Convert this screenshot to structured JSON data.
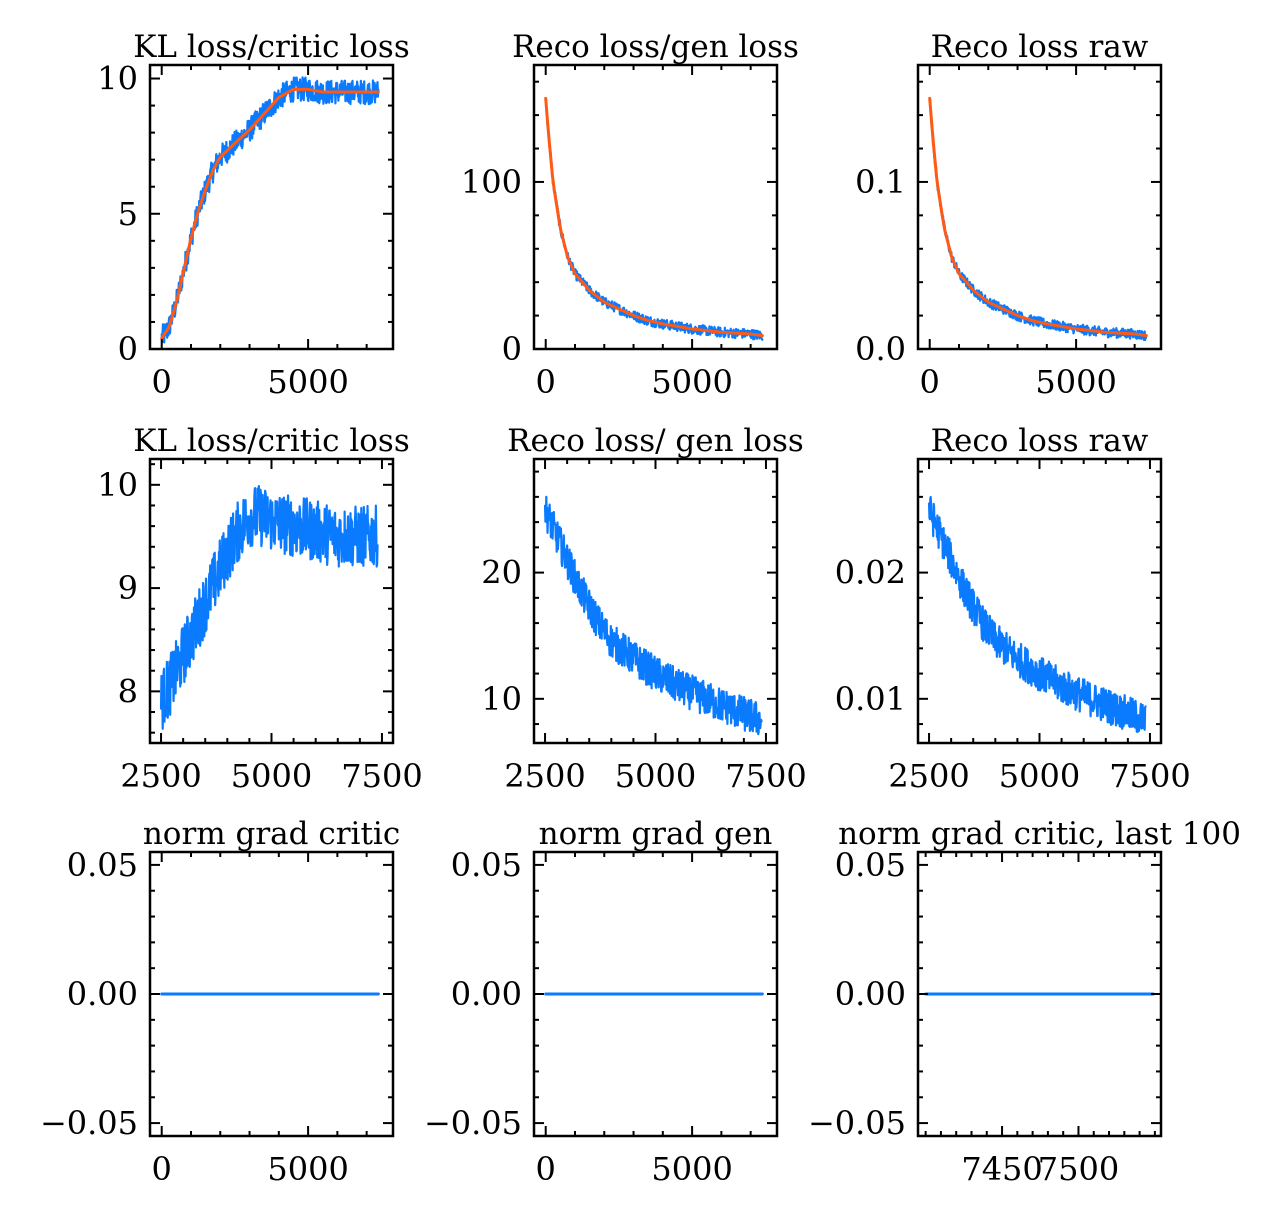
{
  "colors": {
    "raw": "#0a7bff",
    "smoothed": "#ff5a14",
    "axis": "#000000"
  },
  "chart_data": [
    {
      "type": "line",
      "title": "KL loss/critic loss",
      "xlim": [
        -400,
        7900
      ],
      "ylim": [
        0,
        10.5
      ],
      "xticks": [
        0,
        5000
      ],
      "xtick_labels": [
        "0",
        "5000"
      ],
      "xminor": 1000,
      "yticks": [
        0,
        5,
        10
      ],
      "ytick_labels": [
        "0",
        "5",
        "10"
      ],
      "yminor": 1,
      "series": [
        {
          "style": "raw",
          "band": 0.45,
          "x": [
            0,
            250,
            500,
            750,
            1000,
            1250,
            1500,
            1750,
            2000,
            2500,
            3000,
            3500,
            4000,
            4500,
            5000,
            5500,
            6000,
            6500,
            7000,
            7400
          ],
          "y": [
            0.4,
            0.8,
            1.7,
            2.9,
            4.1,
            5.1,
            5.9,
            6.6,
            7.1,
            7.6,
            8.1,
            8.7,
            9.3,
            9.6,
            9.6,
            9.5,
            9.5,
            9.5,
            9.5,
            9.5
          ]
        },
        {
          "style": "smoothed",
          "band": 0,
          "x": [
            0,
            250,
            500,
            750,
            1000,
            1250,
            1500,
            1750,
            2000,
            2500,
            3000,
            3500,
            4000,
            4500,
            5000,
            5500,
            6000,
            6500,
            7000,
            7400
          ],
          "y": [
            0.4,
            0.8,
            1.7,
            2.9,
            4.1,
            5.1,
            5.9,
            6.6,
            7.1,
            7.6,
            8.1,
            8.7,
            9.3,
            9.6,
            9.6,
            9.5,
            9.5,
            9.5,
            9.5,
            9.5
          ]
        }
      ]
    },
    {
      "type": "line",
      "title": "Reco loss/gen loss",
      "xlim": [
        -400,
        7900
      ],
      "ylim": [
        0,
        170
      ],
      "xticks": [
        0,
        5000
      ],
      "xtick_labels": [
        "0",
        "5000"
      ],
      "xminor": 1000,
      "yticks": [
        0,
        100
      ],
      "ytick_labels": [
        "0",
        "100"
      ],
      "yminor": 20,
      "series": [
        {
          "style": "raw",
          "band": 3,
          "x": [
            0,
            100,
            250,
            500,
            750,
            1000,
            1500,
            2000,
            2500,
            3000,
            3500,
            4000,
            5000,
            6000,
            7000,
            7400
          ],
          "y": [
            150,
            128,
            100,
            72,
            55,
            45,
            35,
            28,
            24,
            20,
            17,
            15,
            12,
            10,
            9,
            8
          ]
        },
        {
          "style": "smoothed",
          "band": 0,
          "x": [
            0,
            100,
            250,
            500,
            750,
            1000,
            1500,
            2000,
            2500,
            3000,
            3500,
            4000,
            5000,
            6000,
            7000,
            7400
          ],
          "y": [
            150,
            128,
            100,
            72,
            55,
            45,
            35,
            28,
            24,
            20,
            17,
            15,
            12,
            10,
            9,
            8
          ]
        }
      ]
    },
    {
      "type": "line",
      "title": "Reco loss raw",
      "xlim": [
        -400,
        7900
      ],
      "ylim": [
        0,
        0.17
      ],
      "xticks": [
        0,
        5000
      ],
      "xtick_labels": [
        "0",
        "5000"
      ],
      "xminor": 1000,
      "yticks": [
        0,
        0.1
      ],
      "ytick_labels": [
        "0.0",
        "0.1"
      ],
      "yminor": 0.02,
      "series": [
        {
          "style": "raw",
          "band": 0.003,
          "x": [
            0,
            100,
            250,
            500,
            750,
            1000,
            1500,
            2000,
            2500,
            3000,
            3500,
            4000,
            5000,
            6000,
            7000,
            7400
          ],
          "y": [
            0.15,
            0.128,
            0.1,
            0.072,
            0.055,
            0.045,
            0.035,
            0.028,
            0.024,
            0.02,
            0.017,
            0.015,
            0.012,
            0.01,
            0.009,
            0.008
          ]
        },
        {
          "style": "smoothed",
          "band": 0,
          "x": [
            0,
            100,
            250,
            500,
            750,
            1000,
            1500,
            2000,
            2500,
            3000,
            3500,
            4000,
            5000,
            6000,
            7000,
            7400
          ],
          "y": [
            0.15,
            0.128,
            0.1,
            0.072,
            0.055,
            0.045,
            0.035,
            0.028,
            0.024,
            0.02,
            0.017,
            0.015,
            0.012,
            0.01,
            0.009,
            0.008
          ]
        }
      ]
    },
    {
      "type": "line",
      "title": "KL loss/critic loss",
      "xlim": [
        2250,
        7750
      ],
      "ylim": [
        7.5,
        10.25
      ],
      "xticks": [
        2500,
        5000,
        7500
      ],
      "xtick_labels": [
        "2500",
        "5000",
        "7500"
      ],
      "xminor": 500,
      "yticks": [
        8,
        9,
        10
      ],
      "ytick_labels": [
        "8",
        "9",
        "10"
      ],
      "yminor": 0.2,
      "series": [
        {
          "style": "raw",
          "band": 0.3,
          "x": [
            2500,
            2750,
            3000,
            3250,
            3500,
            3750,
            4000,
            4250,
            4500,
            4750,
            5000,
            5500,
            6000,
            6500,
            7000,
            7400
          ],
          "y": [
            7.9,
            8.1,
            8.35,
            8.6,
            8.85,
            9.1,
            9.35,
            9.55,
            9.7,
            9.7,
            9.65,
            9.6,
            9.55,
            9.5,
            9.5,
            9.5
          ]
        }
      ]
    },
    {
      "type": "line",
      "title": "Reco loss/ gen loss",
      "xlim": [
        2250,
        7750
      ],
      "ylim": [
        6.5,
        29
      ],
      "xticks": [
        2500,
        5000,
        7500
      ],
      "xtick_labels": [
        "2500",
        "5000",
        "7500"
      ],
      "xminor": 500,
      "yticks": [
        10,
        20
      ],
      "ytick_labels": [
        "10",
        "20"
      ],
      "yminor": 2,
      "series": [
        {
          "style": "raw",
          "band": 1.4,
          "x": [
            2500,
            2750,
            3000,
            3250,
            3500,
            3750,
            4000,
            4500,
            5000,
            5500,
            6000,
            6500,
            7000,
            7400
          ],
          "y": [
            25,
            23,
            21,
            19,
            17.3,
            15.8,
            14.6,
            13.2,
            12,
            11,
            10.2,
            9.5,
            8.8,
            8.3
          ]
        }
      ]
    },
    {
      "type": "line",
      "title": "Reco loss raw",
      "xlim": [
        2250,
        7750
      ],
      "ylim": [
        0.0065,
        0.029
      ],
      "xticks": [
        2500,
        5000,
        7500
      ],
      "xtick_labels": [
        "2500",
        "5000",
        "7500"
      ],
      "xminor": 500,
      "yticks": [
        0.01,
        0.02
      ],
      "ytick_labels": [
        "0.01",
        "0.02"
      ],
      "yminor": 0.002,
      "series": [
        {
          "style": "raw",
          "band": 0.0014,
          "x": [
            2500,
            2750,
            3000,
            3250,
            3500,
            3750,
            4000,
            4500,
            5000,
            5500,
            6000,
            6500,
            7000,
            7400
          ],
          "y": [
            0.025,
            0.023,
            0.021,
            0.019,
            0.0173,
            0.0158,
            0.0146,
            0.0132,
            0.012,
            0.011,
            0.0102,
            0.0095,
            0.0088,
            0.0083
          ]
        }
      ]
    },
    {
      "type": "line",
      "title": "norm grad critic",
      "xlim": [
        -400,
        7900
      ],
      "ylim": [
        -0.055,
        0.055
      ],
      "xticks": [
        0,
        5000
      ],
      "xtick_labels": [
        "0",
        "5000"
      ],
      "xminor": 1000,
      "yticks": [
        -0.05,
        0,
        0.05
      ],
      "ytick_labels": [
        "−0.05",
        "0.00",
        "0.05"
      ],
      "yminor": 0.01,
      "series": [
        {
          "style": "raw",
          "band": 0,
          "x": [
            0,
            7400
          ],
          "y": [
            0,
            0
          ]
        }
      ]
    },
    {
      "type": "line",
      "title": "norm grad gen",
      "xlim": [
        -400,
        7900
      ],
      "ylim": [
        -0.055,
        0.055
      ],
      "xticks": [
        0,
        5000
      ],
      "xtick_labels": [
        "0",
        "5000"
      ],
      "xminor": 1000,
      "yticks": [
        -0.05,
        0,
        0.05
      ],
      "ytick_labels": [
        "−0.05",
        "0.00",
        "0.05"
      ],
      "yminor": 0.01,
      "series": [
        {
          "style": "raw",
          "band": 0,
          "x": [
            0,
            7400
          ],
          "y": [
            0,
            0
          ]
        }
      ]
    },
    {
      "type": "line",
      "title": "norm grad critic, last 100",
      "xlim": [
        7395,
        7554
      ],
      "ylim": [
        -0.055,
        0.055
      ],
      "xticks": [
        7450,
        7500
      ],
      "xtick_labels": [
        "7450",
        "7500"
      ],
      "xminor": 10,
      "yticks": [
        -0.05,
        0,
        0.05
      ],
      "ytick_labels": [
        "−0.05",
        "0.00",
        "0.05"
      ],
      "yminor": 0.01,
      "series": [
        {
          "style": "raw",
          "band": 0,
          "x": [
            7400,
            7549
          ],
          "y": [
            0,
            0
          ]
        }
      ]
    }
  ]
}
